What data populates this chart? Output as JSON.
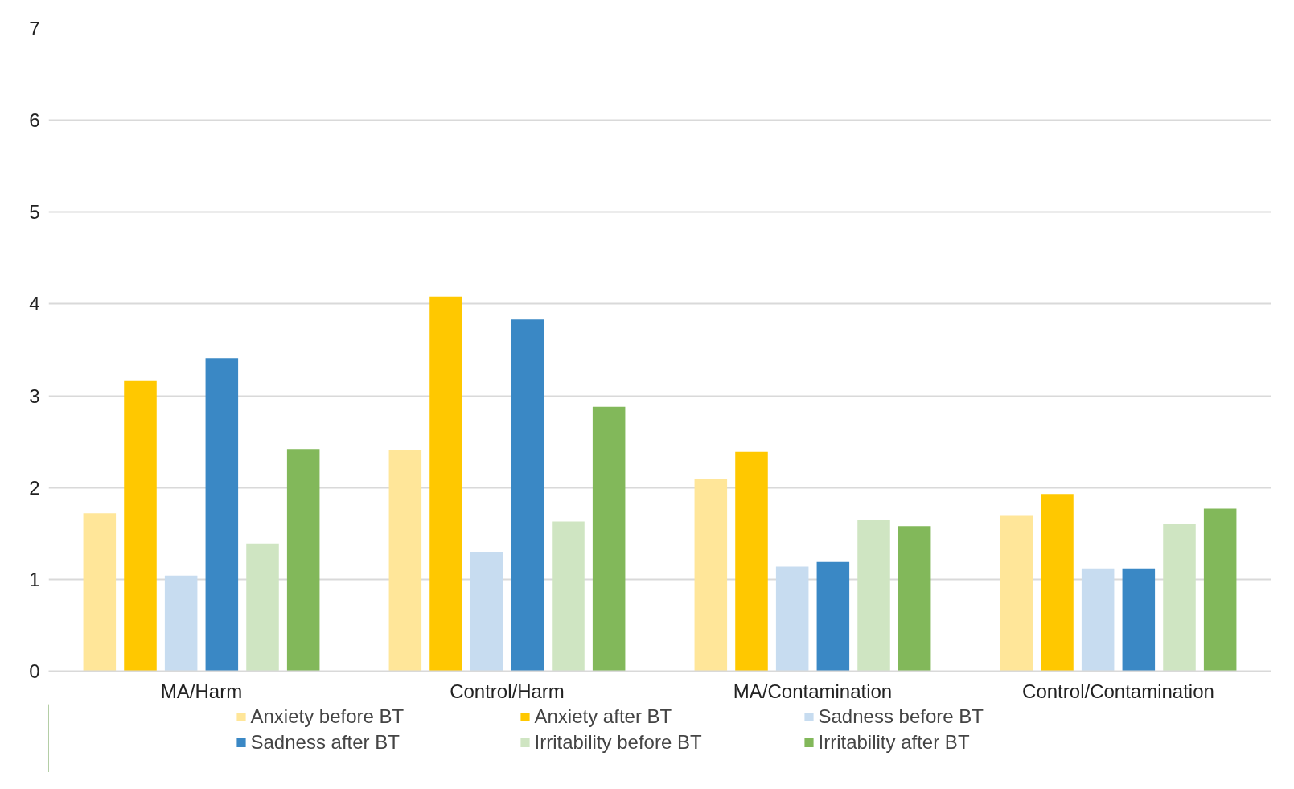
{
  "chart_data": {
    "type": "bar",
    "categories": [
      "MA/Harm",
      "Control/Harm",
      "MA/Contamination",
      "Control/Contamination"
    ],
    "series": [
      {
        "name": "Anxiety before BT",
        "color": "#ffe699",
        "values": [
          1.72,
          2.41,
          2.09,
          1.7
        ]
      },
      {
        "name": "Anxiety after BT",
        "color": "#ffc800",
        "values": [
          3.16,
          4.08,
          2.39,
          1.93
        ]
      },
      {
        "name": "Sadness before BT",
        "color": "#c7dcf0",
        "values": [
          1.04,
          1.3,
          1.14,
          1.12
        ]
      },
      {
        "name": "Sadness after BT",
        "color": "#3a88c5",
        "values": [
          3.41,
          3.83,
          1.19,
          1.12
        ]
      },
      {
        "name": "Irritability before BT",
        "color": "#cfe5c2",
        "values": [
          1.39,
          1.63,
          1.65,
          1.6
        ]
      },
      {
        "name": "Irritability after BT",
        "color": "#82b85a",
        "values": [
          2.42,
          2.88,
          1.58,
          1.77
        ]
      }
    ],
    "ylim": [
      0,
      7
    ],
    "yticks": [
      0,
      1,
      2,
      3,
      4,
      5,
      6,
      7
    ],
    "grid": "y",
    "legend": "bottom"
  }
}
